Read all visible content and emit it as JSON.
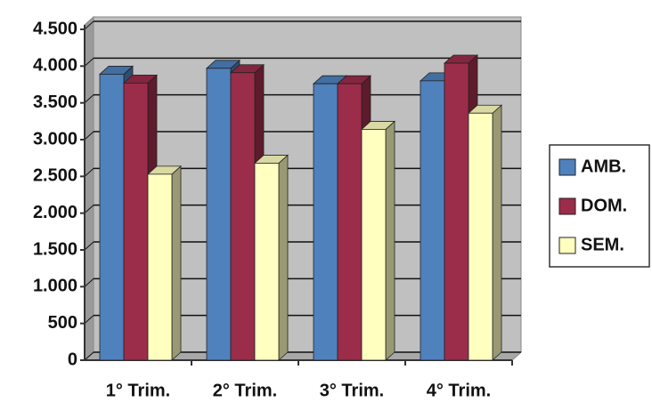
{
  "chart_data": {
    "type": "bar3d",
    "categories": [
      "1° Trim.",
      "2° Trim.",
      "3° Trim.",
      "4° Trim."
    ],
    "series": [
      {
        "name": "AMB.",
        "color": "#4f81bd",
        "values": [
          3890,
          3970,
          3760,
          3800
        ]
      },
      {
        "name": "DOM.",
        "color": "#9b2d4a",
        "values": [
          3770,
          3910,
          3760,
          4040
        ]
      },
      {
        "name": "SEM.",
        "color": "#ffffc0",
        "values": [
          2530,
          2680,
          3140,
          3360
        ]
      }
    ],
    "ylim": [
      0,
      4500
    ],
    "yticks": [
      0,
      500,
      {
        "value": 1000,
        "label": "1.000"
      },
      {
        "value": 1500,
        "label": "1.500"
      },
      {
        "value": 2000,
        "label": "2.000"
      },
      {
        "value": 2500,
        "label": "2.500"
      },
      {
        "value": 3000,
        "label": "3.000"
      },
      {
        "value": 3500,
        "label": "3.500"
      },
      {
        "value": 4000,
        "label": "4.000"
      },
      {
        "value": 4500,
        "label": "4.500"
      }
    ],
    "grid": true,
    "legend": "right"
  }
}
